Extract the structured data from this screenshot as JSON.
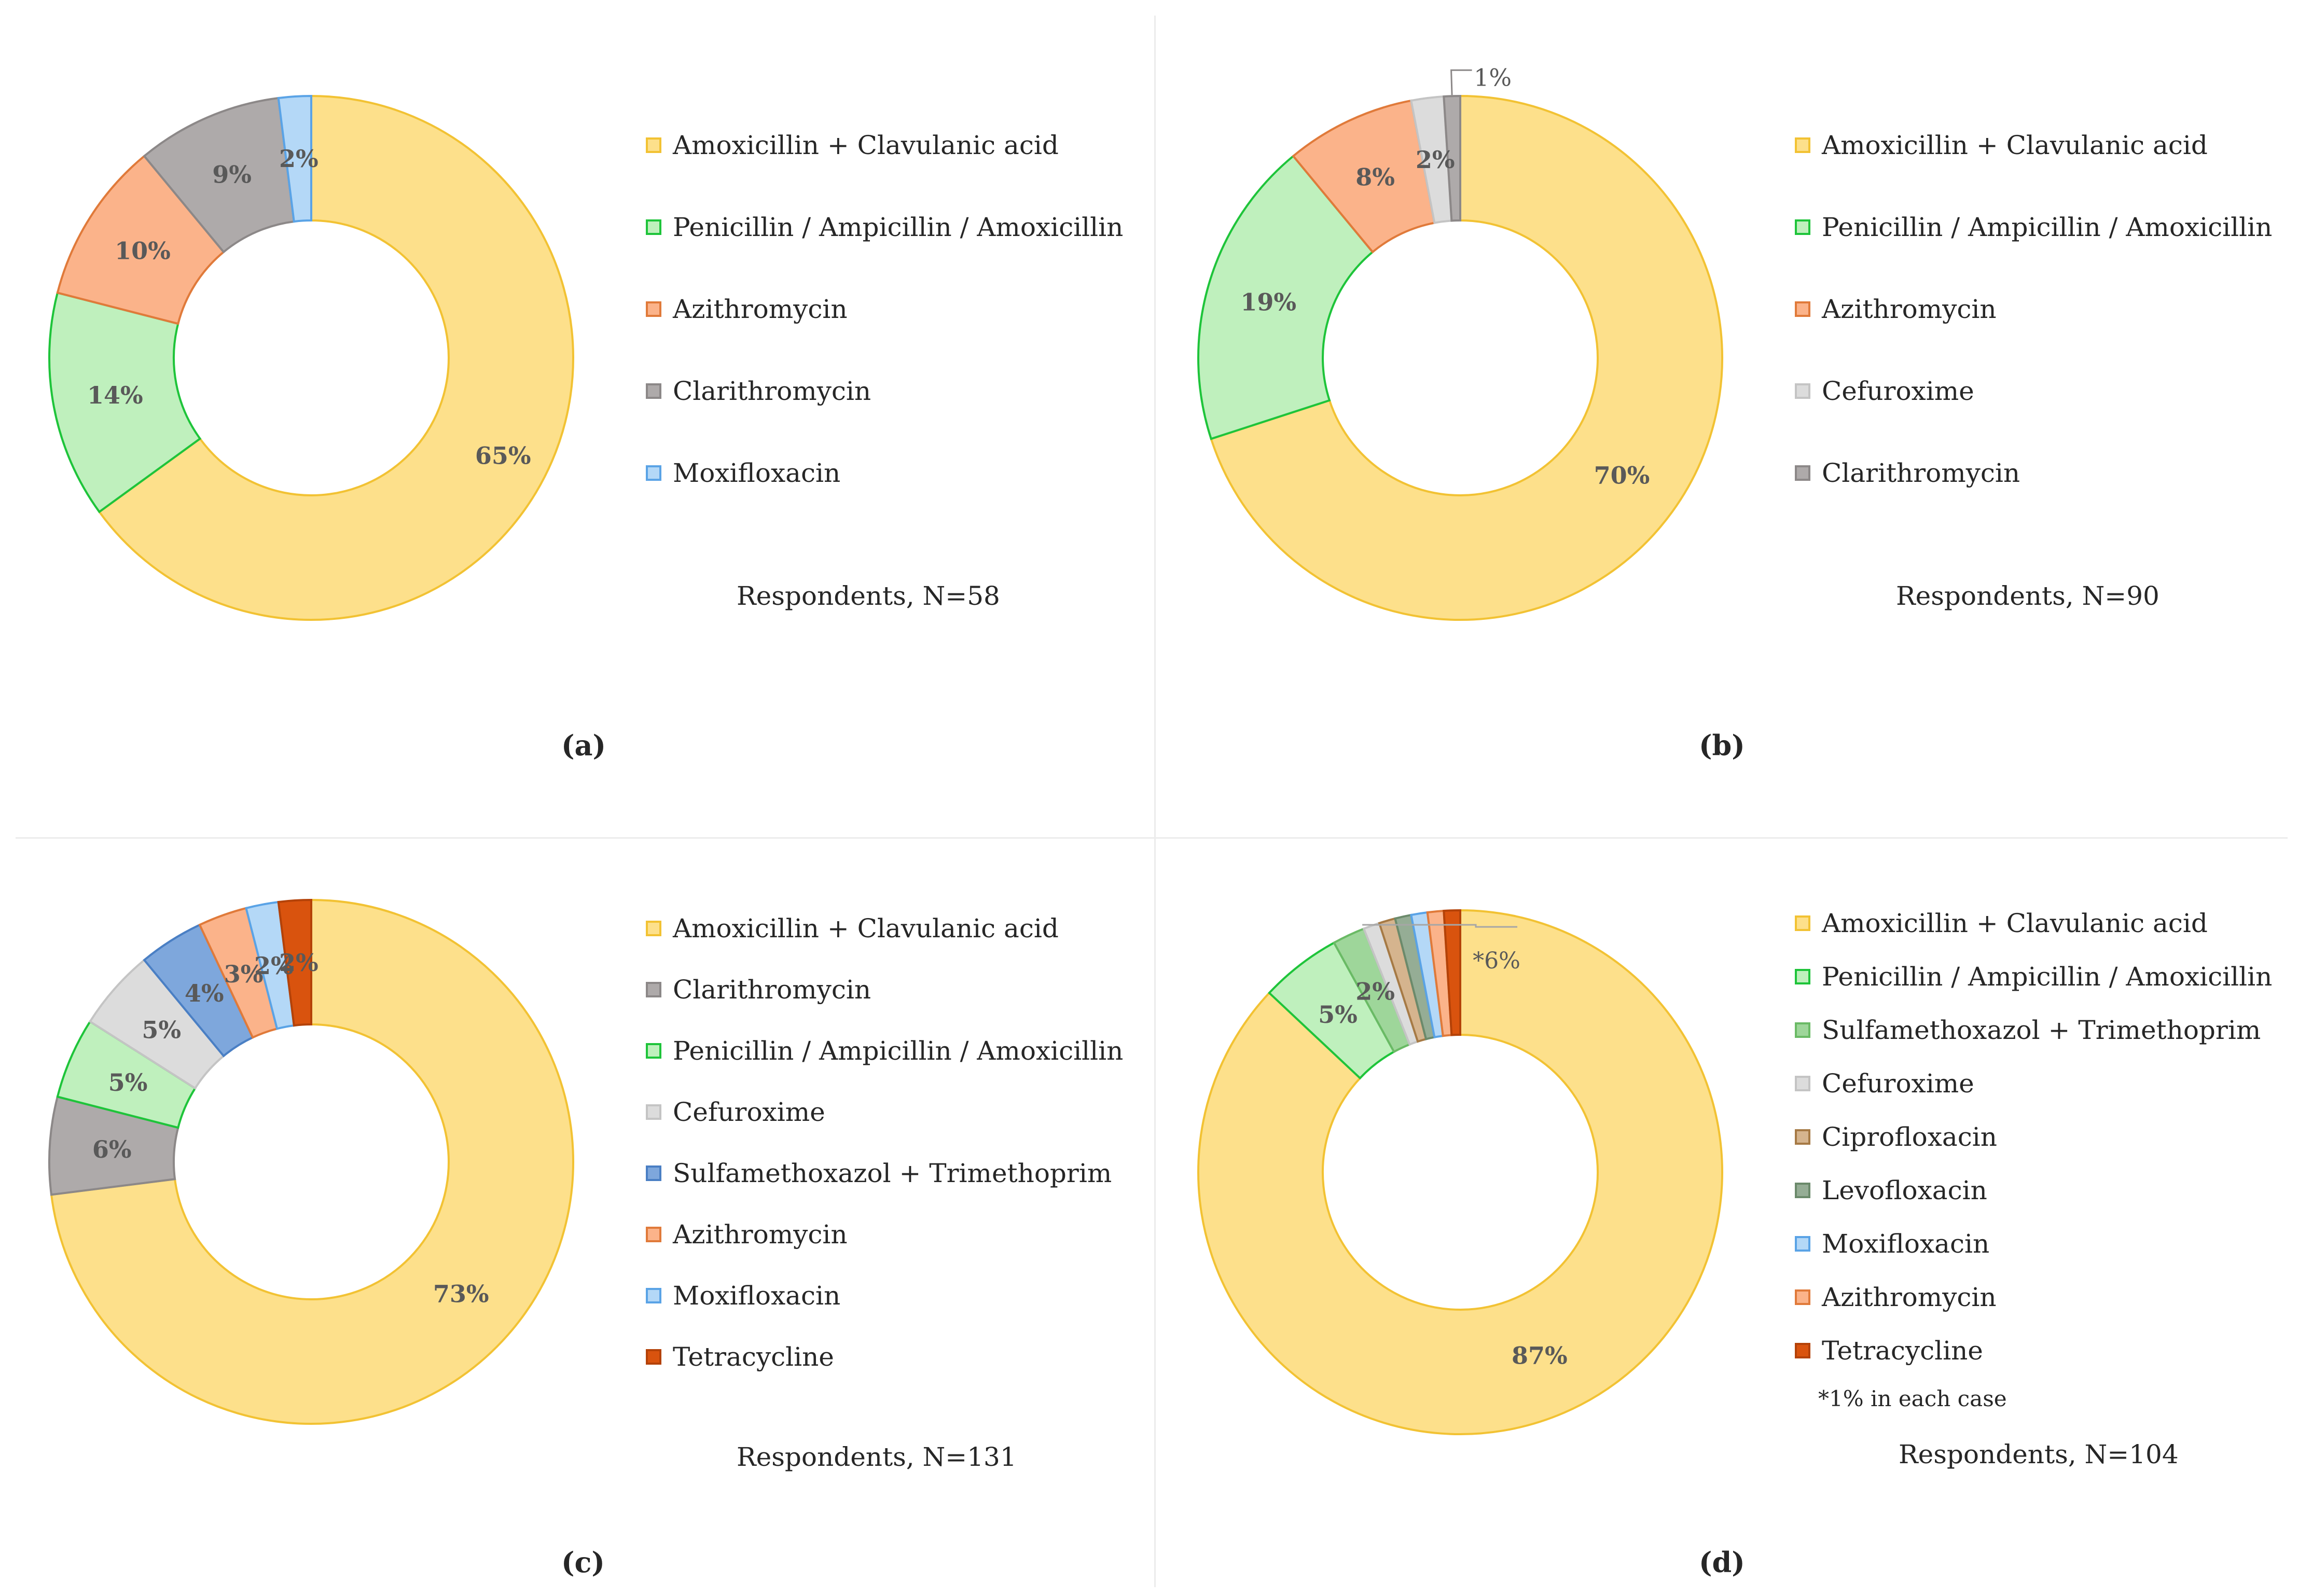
{
  "chart_data": [
    {
      "type": "pie",
      "panel": "(a)",
      "respondents": "Respondents, N=58",
      "slices": [
        {
          "name": "Amoxicillin + Clavulanic acid",
          "value": 65,
          "label": "65%",
          "fill": "#fde08b",
          "stroke": "#f2c233"
        },
        {
          "name": "Penicillin / Ampicillin / Amoxicillin",
          "value": 14,
          "label": "14%",
          "fill": "#bff0bd",
          "stroke": "#1ec43a"
        },
        {
          "name": "Azithromycin",
          "value": 10,
          "label": "10%",
          "fill": "#fbb38a",
          "stroke": "#e07a3a"
        },
        {
          "name": "Clarithromycin",
          "value": 9,
          "label": "9%",
          "fill": "#aeaaaa",
          "stroke": "#8c8888"
        },
        {
          "name": "Moxifloxacin",
          "value": 2,
          "label": "2%",
          "fill": "#b4d8f7",
          "stroke": "#5aa3e6"
        }
      ]
    },
    {
      "type": "pie",
      "panel": "(b)",
      "respondents": "Respondents, N=90",
      "slices": [
        {
          "name": "Amoxicillin + Clavulanic acid",
          "value": 70,
          "label": "70%",
          "fill": "#fde08b",
          "stroke": "#f2c233"
        },
        {
          "name": "Penicillin / Ampicillin / Amoxicillin",
          "value": 19,
          "label": "19%",
          "fill": "#bff0bd",
          "stroke": "#1ec43a"
        },
        {
          "name": "Azithromycin",
          "value": 8,
          "label": "8%",
          "fill": "#fbb38a",
          "stroke": "#e07a3a"
        },
        {
          "name": "Cefuroxime",
          "value": 2,
          "label": "2%",
          "fill": "#dcdcdc",
          "stroke": "#c4c4c4"
        },
        {
          "name": "Clarithromycin",
          "value": 1,
          "label": "1%",
          "fill": "#aeaaaa",
          "stroke": "#8c8888"
        }
      ]
    },
    {
      "type": "pie",
      "panel": "(c)",
      "respondents": "Respondents, N=131",
      "slices": [
        {
          "name": "Amoxicillin + Clavulanic acid",
          "value": 73,
          "label": "73%",
          "fill": "#fde08b",
          "stroke": "#f2c233"
        },
        {
          "name": "Clarithromycin",
          "value": 6,
          "label": "6%",
          "fill": "#aeaaaa",
          "stroke": "#8c8888"
        },
        {
          "name": "Penicillin / Ampicillin / Amoxicillin",
          "value": 5,
          "label": "5%",
          "fill": "#bff0bd",
          "stroke": "#1ec43a"
        },
        {
          "name": "Cefuroxime",
          "value": 5,
          "label": "5%",
          "fill": "#dcdcdc",
          "stroke": "#c4c4c4"
        },
        {
          "name": "Sulfamethoxazol + Trimethoprim",
          "value": 4,
          "label": "4%",
          "fill": "#7ea7dc",
          "stroke": "#4a7fc4"
        },
        {
          "name": "Azithromycin",
          "value": 3,
          "label": "3%",
          "fill": "#fbb38a",
          "stroke": "#e07a3a"
        },
        {
          "name": "Moxifloxacin",
          "value": 2,
          "label": "2%",
          "fill": "#b4d8f7",
          "stroke": "#5aa3e6"
        },
        {
          "name": "Tetracycline",
          "value": 2,
          "label": "2%",
          "fill": "#d9530e",
          "stroke": "#b44208"
        }
      ]
    },
    {
      "type": "pie",
      "panel": "(d)",
      "respondents": "Respondents, N=104",
      "footnote": "*1% in each case",
      "group_label": "*6%",
      "slices": [
        {
          "name": "Amoxicillin + Clavulanic acid",
          "value": 87,
          "label": "87%",
          "fill": "#fde08b",
          "stroke": "#f2c233"
        },
        {
          "name": "Penicillin / Ampicillin / Amoxicillin",
          "value": 5,
          "label": "5%",
          "fill": "#bff0bd",
          "stroke": "#1ec43a"
        },
        {
          "name": "Sulfamethoxazol + Trimethoprim",
          "value": 2,
          "label": "2%",
          "fill": "#9ed69a",
          "stroke": "#6aba65"
        },
        {
          "name": "Cefuroxime",
          "value": 1,
          "label": "",
          "fill": "#dcdcdc",
          "stroke": "#c4c4c4"
        },
        {
          "name": "Ciprofloxacin",
          "value": 1,
          "label": "",
          "fill": "#d5b48e",
          "stroke": "#a67a45"
        },
        {
          "name": "Levofloxacin",
          "value": 1,
          "label": "",
          "fill": "#95ad95",
          "stroke": "#6b8a6b"
        },
        {
          "name": "Moxifloxacin",
          "value": 1,
          "label": "",
          "fill": "#b4d8f7",
          "stroke": "#5aa3e6"
        },
        {
          "name": "Azithromycin",
          "value": 1,
          "label": "",
          "fill": "#fbb38a",
          "stroke": "#e07a3a"
        },
        {
          "name": "Tetracycline",
          "value": 1,
          "label": "",
          "fill": "#d9530e",
          "stroke": "#b44208"
        }
      ]
    }
  ]
}
